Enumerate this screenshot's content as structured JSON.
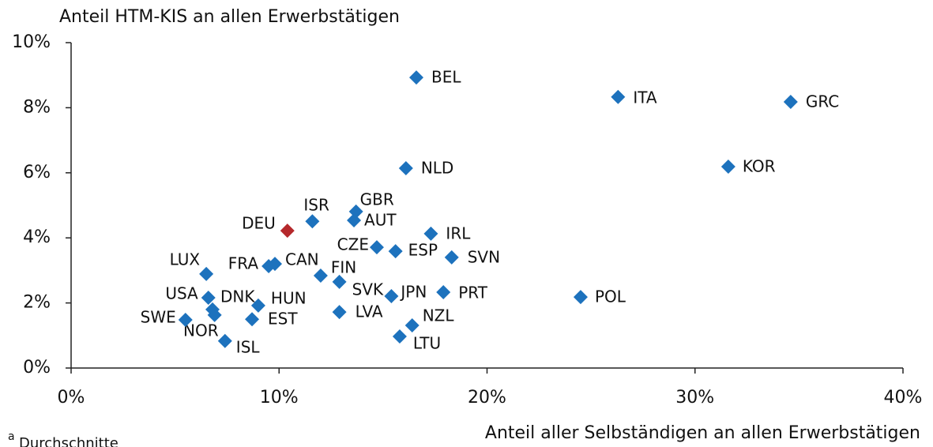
{
  "chart_data": {
    "type": "scatter",
    "y_title": "Anteil HTM-KIS an allen Erwerbstätigen",
    "x_title": "Anteil aller Selbständigen an allen Erwerbstätigen",
    "note_marker": "a",
    "note": "Durchschnitte",
    "categories": [
      "BEL",
      "ITA",
      "GRC",
      "KOR",
      "NLD",
      "GBR",
      "ISR",
      "AUT",
      "DEU",
      "IRL",
      "CZE",
      "ESP",
      "SVN",
      "CAN",
      "FRA",
      "LUX",
      "FIN",
      "SVK",
      "PRT",
      "JPN",
      "USA",
      "POL",
      "HUN",
      "DNK",
      "NOR",
      "LVA",
      "EST",
      "SWE",
      "NZL",
      "LTU",
      "ISL"
    ],
    "x": [
      16.6,
      26.3,
      34.6,
      31.6,
      16.1,
      13.7,
      11.6,
      13.6,
      10.4,
      17.3,
      14.7,
      15.6,
      18.3,
      9.8,
      9.5,
      6.5,
      12.0,
      12.9,
      17.9,
      15.4,
      6.6,
      24.5,
      9.0,
      6.8,
      6.9,
      12.9,
      8.7,
      5.5,
      16.4,
      15.8,
      7.4
    ],
    "values": [
      8.93,
      8.33,
      8.18,
      6.19,
      6.14,
      4.81,
      4.51,
      4.54,
      4.22,
      4.13,
      3.71,
      3.59,
      3.4,
      3.2,
      3.13,
      2.89,
      2.84,
      2.65,
      2.33,
      2.21,
      2.16,
      2.18,
      1.92,
      1.8,
      1.63,
      1.72,
      1.5,
      1.48,
      1.31,
      0.97,
      0.83
    ],
    "colors": [
      "#1d72bd",
      "#1d72bd",
      "#1d72bd",
      "#1d72bd",
      "#1d72bd",
      "#1d72bd",
      "#1d72bd",
      "#1d72bd",
      "#b5282b",
      "#1d72bd",
      "#1d72bd",
      "#1d72bd",
      "#1d72bd",
      "#1d72bd",
      "#1d72bd",
      "#1d72bd",
      "#1d72bd",
      "#1d72bd",
      "#1d72bd",
      "#1d72bd",
      "#1d72bd",
      "#1d72bd",
      "#1d72bd",
      "#1d72bd",
      "#1d72bd",
      "#1d72bd",
      "#1d72bd",
      "#1d72bd",
      "#1d72bd",
      "#1d72bd",
      "#1d72bd"
    ],
    "xlim": [
      0,
      40
    ],
    "ylim": [
      0,
      10
    ],
    "xticks": [
      {
        "value": 0,
        "label": "0%"
      },
      {
        "value": 10,
        "label": "10%"
      },
      {
        "value": 20,
        "label": "20%"
      },
      {
        "value": 30,
        "label": "30%"
      },
      {
        "value": 40,
        "label": "40%"
      }
    ],
    "yticks": [
      {
        "value": 0,
        "label": "0%"
      },
      {
        "value": 2,
        "label": "2%"
      },
      {
        "value": 4,
        "label": "4%"
      },
      {
        "value": 6,
        "label": "6%"
      },
      {
        "value": 8,
        "label": "8%"
      },
      {
        "value": 10,
        "label": "10%"
      }
    ]
  }
}
